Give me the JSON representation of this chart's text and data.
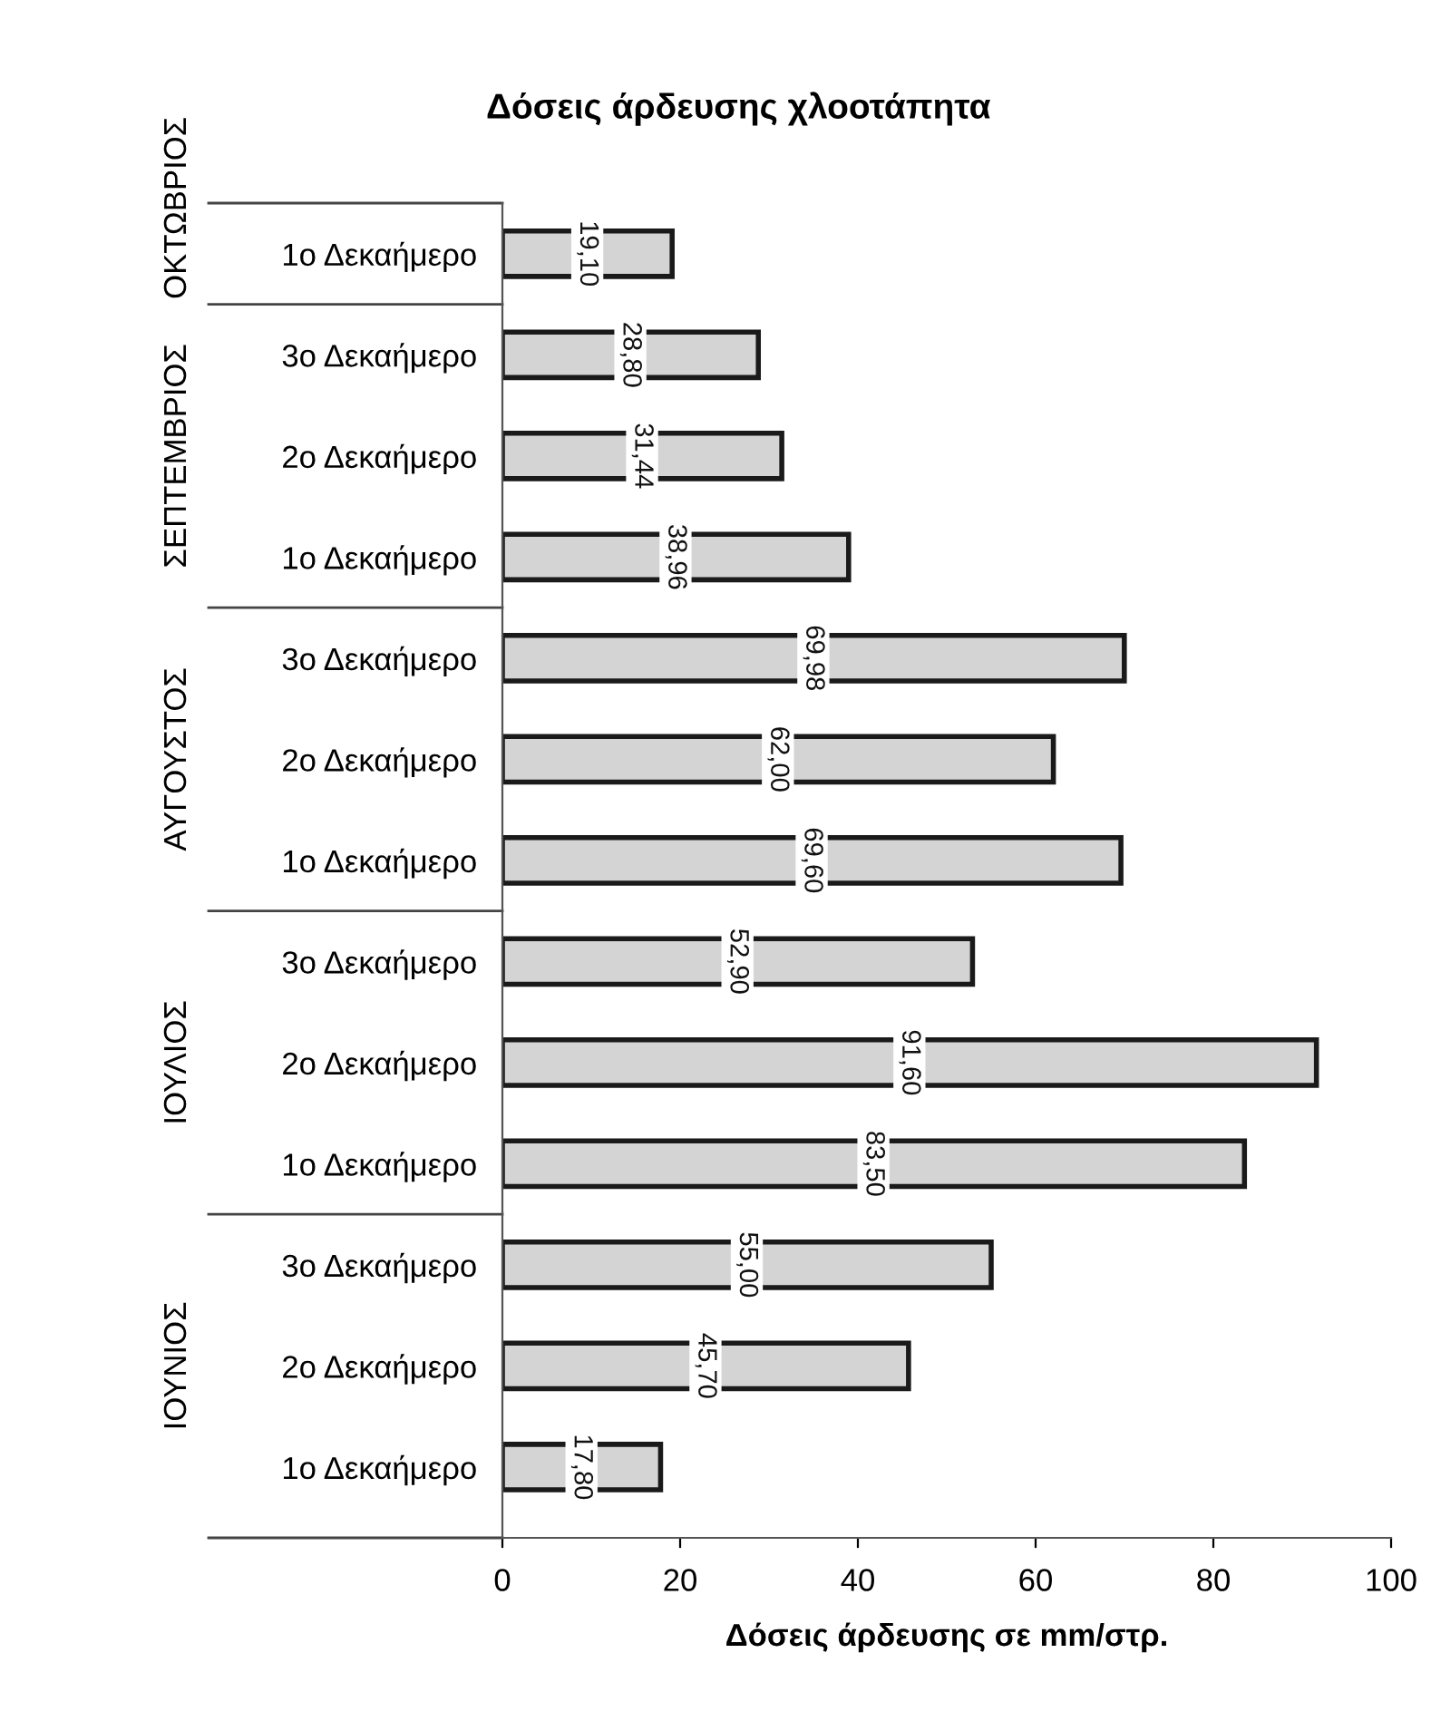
{
  "chart_data": {
    "type": "bar",
    "orientation": "horizontal",
    "title": "Δόσεις άρδευσης χλοοτάπητα",
    "xlabel": "Δόσεις άρδευσης σε mm/στρ.",
    "categories": [
      "1ο Δεκαήμερο",
      "3ο Δεκαήμερο",
      "2ο Δεκαήμερο",
      "1ο Δεκαήμερο",
      "3ο Δεκαήμερο",
      "2ο Δεκαήμερο",
      "1ο Δεκαήμερο",
      "3ο Δεκαήμερο",
      "2ο Δεκαήμερο",
      "1ο Δεκαήμερο",
      "3ο Δεκαήμερο",
      "2ο Δεκαήμερο",
      "1ο Δεκαήμερο"
    ],
    "values": [
      19.1,
      28.8,
      31.44,
      38.96,
      69.98,
      62.0,
      69.6,
      52.9,
      91.6,
      83.5,
      55.0,
      45.7,
      17.8
    ],
    "value_labels": [
      "19,10",
      "28,80",
      "31,44",
      "38,96",
      "69,98",
      "62,00",
      "69,60",
      "52,90",
      "91,60",
      "83,50",
      "55,00",
      "45,70",
      "17,80"
    ],
    "color": "#d4d4d4",
    "annotations": [
      "ΟΚΤΩΒΡΙΟΣ",
      "ΣΕΠΤΕΜΒΡΙΟΣ",
      "ΑΥΓΟΥΣΤΟΣ",
      "ΙΟΥΛΙΟΣ",
      "ΙΟΥΝΙΟΣ"
    ],
    "xlim": [
      0,
      100
    ],
    "xticks": [
      0,
      20,
      40,
      60,
      80,
      100
    ]
  }
}
